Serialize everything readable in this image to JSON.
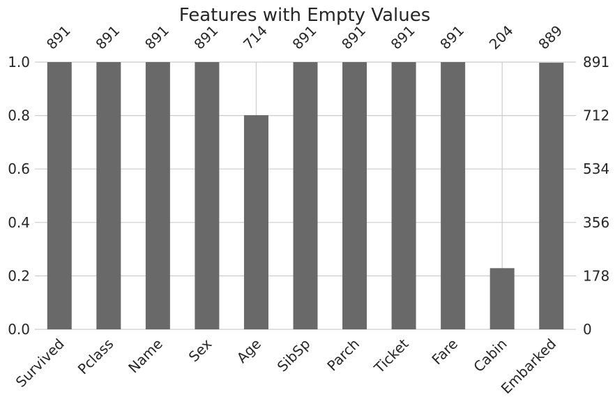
{
  "chart_data": {
    "type": "bar",
    "title": "Features with Empty Values",
    "categories": [
      "Survived",
      "Pclass",
      "Name",
      "Sex",
      "Age",
      "SibSp",
      "Parch",
      "Ticket",
      "Fare",
      "Cabin",
      "Embarked"
    ],
    "counts": [
      891,
      891,
      891,
      891,
      714,
      891,
      891,
      891,
      891,
      204,
      889
    ],
    "total": 891,
    "ylim": [
      0,
      1.0
    ],
    "yticks_left": [
      "0.0",
      "0.2",
      "0.4",
      "0.6",
      "0.8",
      "1.0"
    ],
    "yticks_right": [
      "0",
      "178",
      "356",
      "534",
      "712",
      "891"
    ],
    "xlabel": "",
    "ylabel": "",
    "grid": true,
    "bar_color": "#696969"
  }
}
